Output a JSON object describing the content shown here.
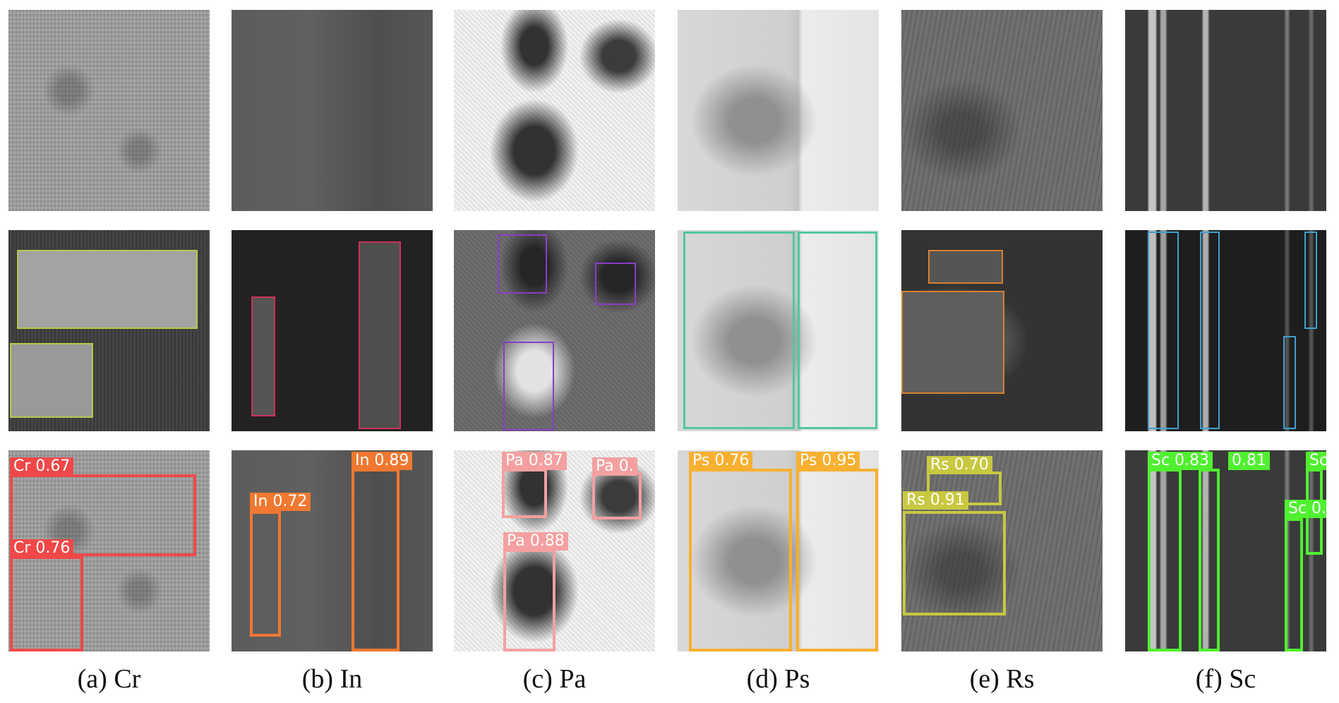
{
  "colors": {
    "cr_gt": "#b8c84a",
    "cr_pred": "#f04848",
    "in_gt": "#d0305a",
    "in_pred": "#f07830",
    "pa_gt": "#8a3cc8",
    "pa_pred": "#f4a0a0",
    "ps_gt": "#50c8a0",
    "ps_pred": "#f8b030",
    "rs_gt": "#d88030",
    "rs_pred": "#c8c840",
    "sc_gt": "#40a0d0",
    "sc_pred": "#50f030"
  },
  "captions": {
    "cr": "(a) Cr",
    "in": "(b) In",
    "pa": "(c) Pa",
    "ps": "(d) Ps",
    "rs": "(e) Rs",
    "sc": "(f) Sc"
  },
  "labels": {
    "cr": [
      "Cr 0.67",
      "Cr 0.76"
    ],
    "in": [
      "In 0.72",
      "In 0.89"
    ],
    "pa": [
      "Pa 0.87",
      "Pa 0.",
      "Pa 0.88"
    ],
    "ps": [
      "Ps 0.76",
      "Ps 0.95"
    ],
    "rs": [
      "Rs 0.70",
      "Rs 0.91"
    ],
    "sc": [
      "Sc 0.83",
      "0.81",
      "Sc",
      "Sc 0."
    ]
  }
}
